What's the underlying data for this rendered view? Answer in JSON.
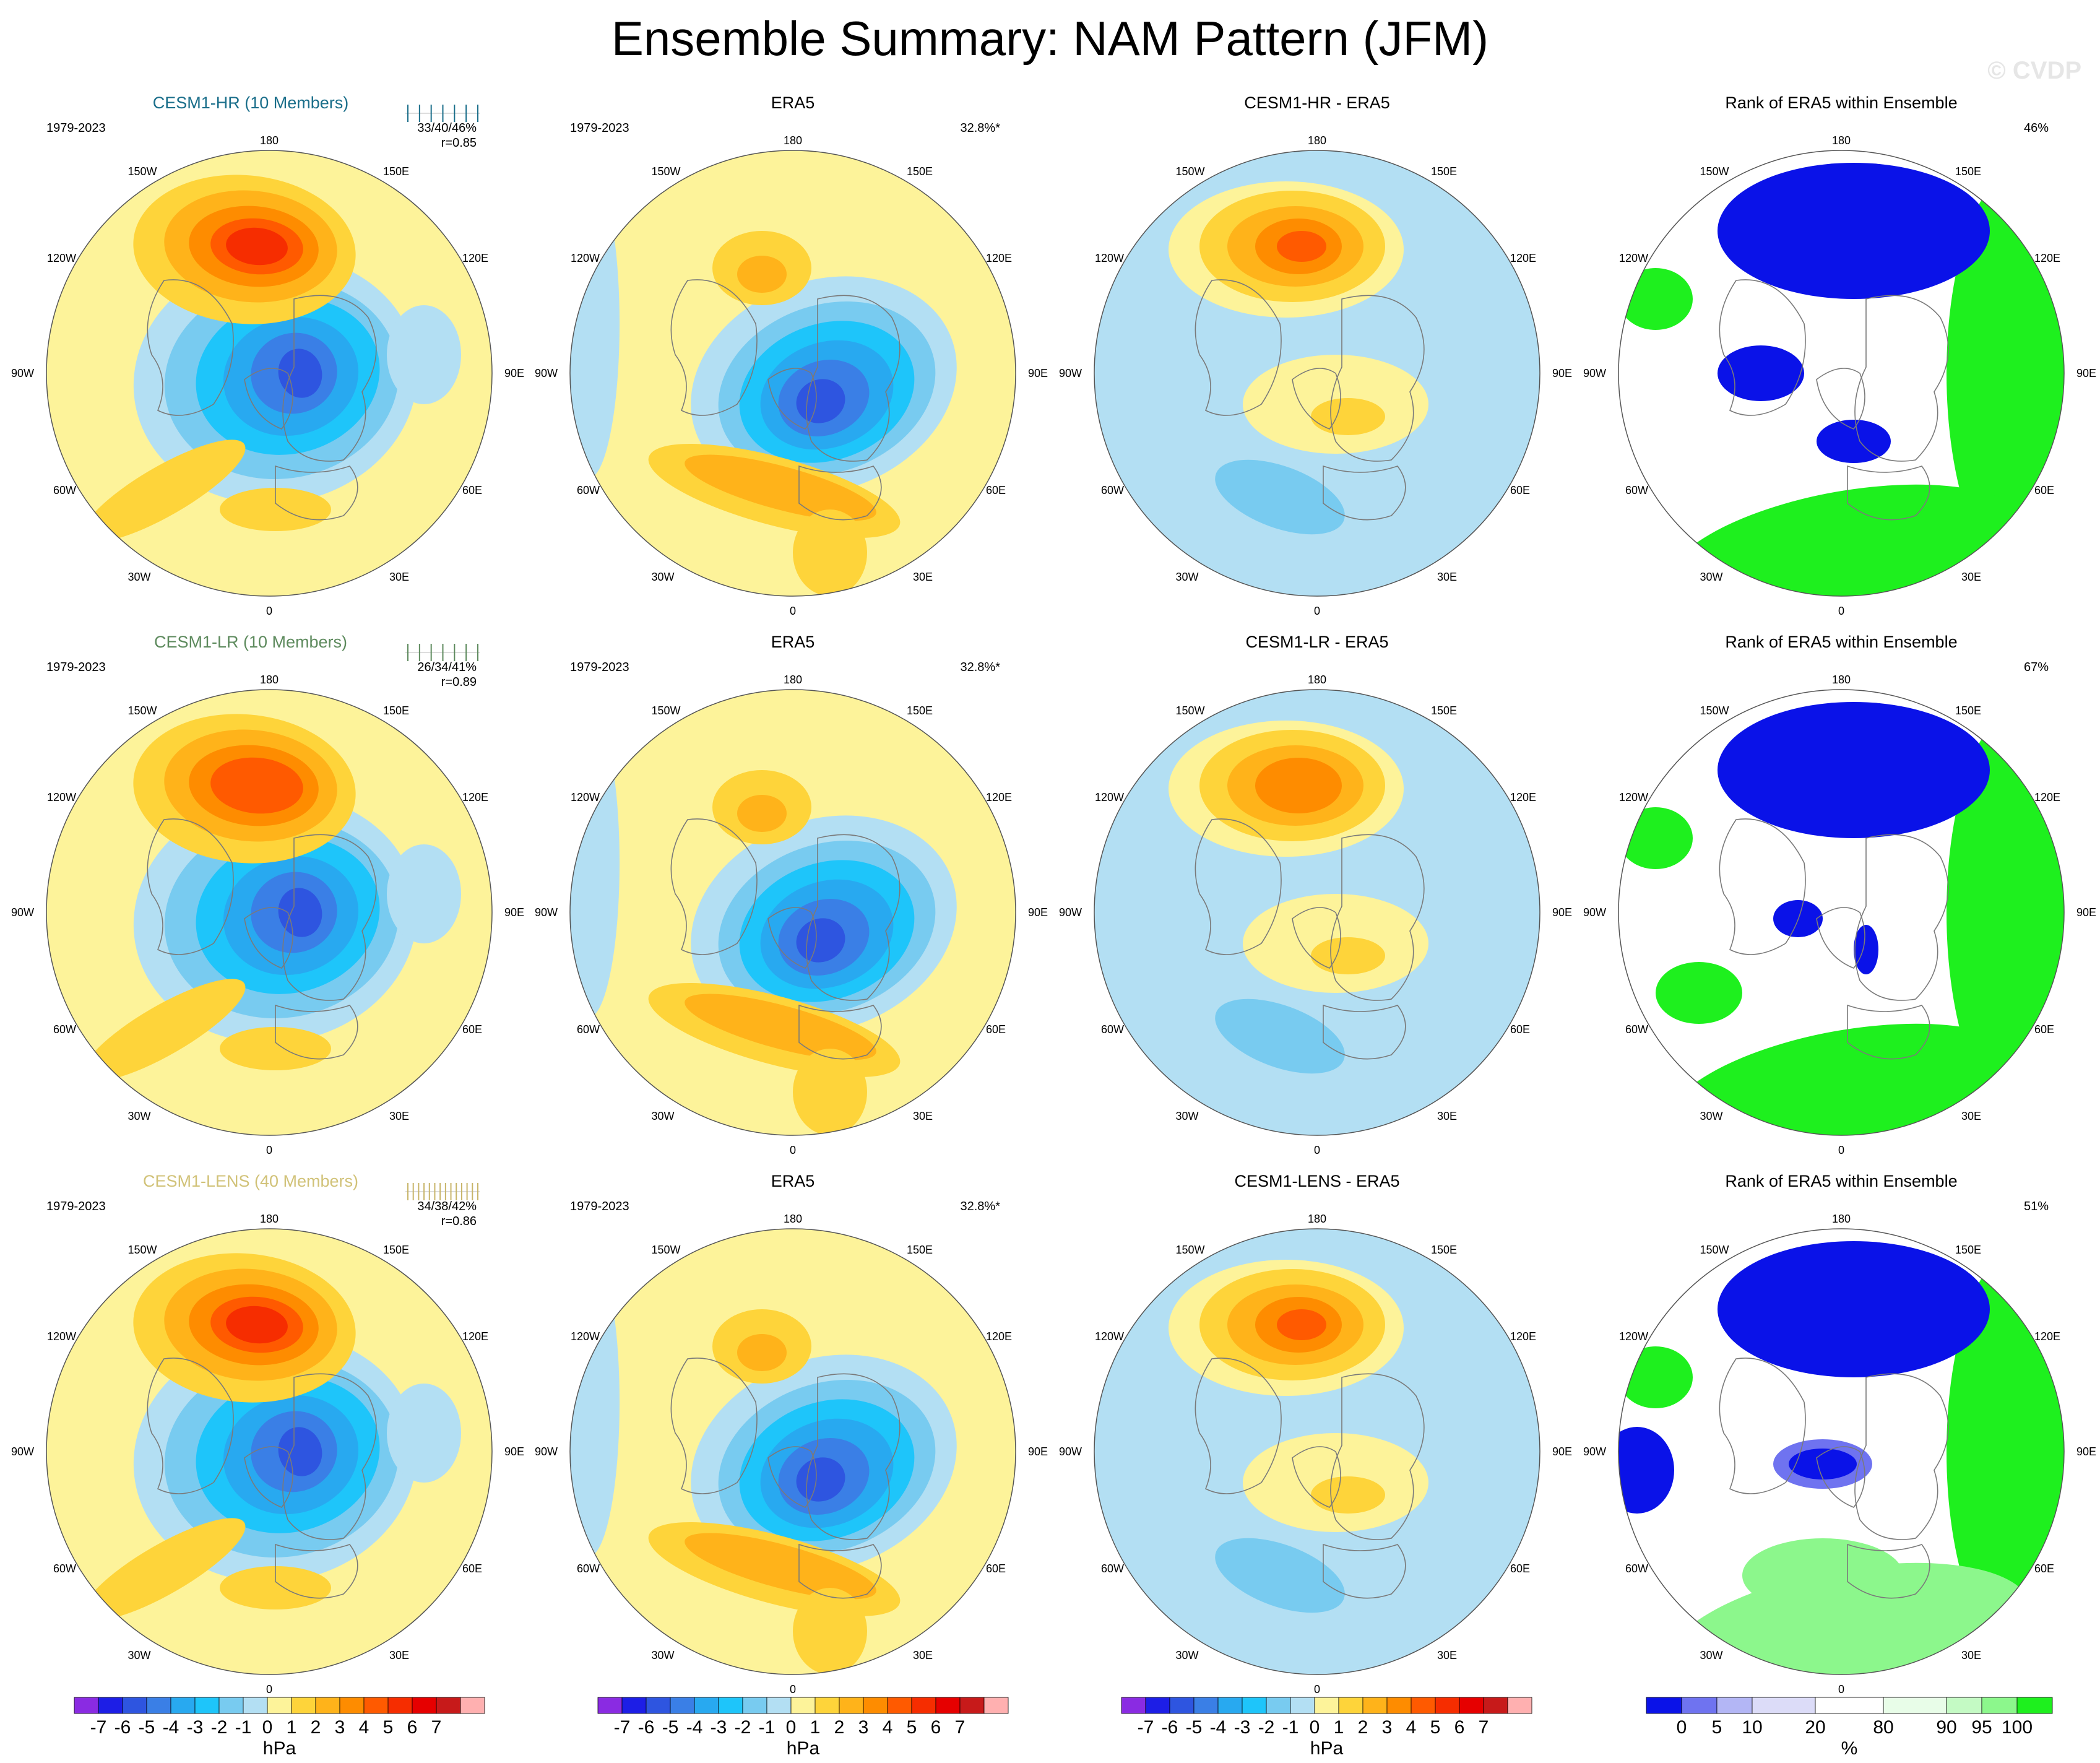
{
  "title": "Ensemble Summary: NAM Pattern (JFM)",
  "watermark": "© CVDP",
  "colors": {
    "ocean_light_blue": "#b3dff3",
    "land_yellow": "#fdf39a",
    "coast": "#7a7a7a",
    "model_title_hr": "#1a6e8a",
    "model_title_lr": "#5d8a5d",
    "model_title_lens": "#d1c278"
  },
  "hpa_colorbar": {
    "colors": [
      "#8a2be2",
      "#1d1ee6",
      "#2e55e0",
      "#3a7fe6",
      "#28a9f0",
      "#1ec5fa",
      "#78cbf0",
      "#b3dff3",
      "#fdf39a",
      "#fed43a",
      "#ffb31a",
      "#fe8c00",
      "#ff5a00",
      "#f62d00",
      "#e60000",
      "#c71a1a",
      "#ffb0b0"
    ],
    "labels": [
      "-7",
      "-6",
      "-5",
      "-4",
      "-3",
      "-2",
      "-1",
      "0",
      "1",
      "2",
      "3",
      "4",
      "5",
      "6",
      "7"
    ],
    "unit": "hPa"
  },
  "rank_colorbar": {
    "colors": [
      "#0a12e8",
      "#6f73f0",
      "#b3b6f5",
      "#dcdcf8",
      "#ffffff",
      "#e8fde8",
      "#c4fac4",
      "#8cf78c",
      "#1ef01e"
    ],
    "labels": [
      "0",
      "5",
      "10",
      "20",
      "80",
      "90",
      "95",
      "100"
    ],
    "unit": "%"
  },
  "map_labels": {
    "top": "180",
    "bottom": "0",
    "left_upper": "120W",
    "left_mid": "90W",
    "left_lower": "60W",
    "upper_left": "150W",
    "lower_left": "30W",
    "right_upper": "120E",
    "right_mid": "90E",
    "right_lower": "60E",
    "upper_right": "150E",
    "lower_right": "30E"
  },
  "rows": [
    {
      "model": {
        "title": "CESM1-HR (10 Members)",
        "color_key": "model_title_hr",
        "years": "1979-2023",
        "stats": "33/40/46%",
        "corr": "r=0.85",
        "tick_color": "#1a6e8a"
      },
      "era5": {
        "title": "ERA5",
        "years": "1979-2023",
        "pct": "32.8%*"
      },
      "diff": {
        "title": "CESM1-HR - ERA5"
      },
      "rank": {
        "title": "Rank of ERA5 within Ensemble",
        "pct": "46%"
      }
    },
    {
      "model": {
        "title": "CESM1-LR (10 Members)",
        "color_key": "model_title_lr",
        "years": "1979-2023",
        "stats": "26/34/41%",
        "corr": "r=0.89",
        "tick_color": "#5d8a5d"
      },
      "era5": {
        "title": "ERA5",
        "years": "1979-2023",
        "pct": "32.8%*"
      },
      "diff": {
        "title": "CESM1-LR - ERA5"
      },
      "rank": {
        "title": "Rank of ERA5 within Ensemble",
        "pct": "67%"
      }
    },
    {
      "model": {
        "title": "CESM1-LENS (40 Members)",
        "color_key": "model_title_lens",
        "years": "1979-2023",
        "stats": "34/38/42%",
        "corr": "r=0.86",
        "tick_color": "#c8b56a"
      },
      "era5": {
        "title": "ERA5",
        "years": "1979-2023",
        "pct": "32.8%*"
      },
      "diff": {
        "title": "CESM1-LENS - ERA5"
      },
      "rank": {
        "title": "Rank of ERA5 within Ensemble",
        "pct": "51%"
      }
    }
  ],
  "chart_data": [
    {
      "type": "heatmap",
      "title": "CESM1-HR (10 Members)",
      "variable": "NAM pattern",
      "units": "hPa",
      "clim": [
        -7,
        7
      ],
      "centers": [
        {
          "region": "Arctic",
          "value": -6
        },
        {
          "region": "North Pacific",
          "value": 5
        },
        {
          "region": "Europe/Mediterranean",
          "value": 1
        }
      ]
    },
    {
      "type": "heatmap",
      "title": "ERA5",
      "variable": "NAM pattern",
      "units": "hPa",
      "clim": [
        -7,
        7
      ],
      "centers": [
        {
          "region": "Arctic",
          "value": -6
        },
        {
          "region": "North Pacific",
          "value": 2
        },
        {
          "region": "North Atlantic",
          "value": 3
        }
      ]
    },
    {
      "type": "heatmap",
      "title": "CESM1-HR - ERA5",
      "units": "hPa",
      "clim": [
        -7,
        7
      ],
      "centers": [
        {
          "region": "North Pacific",
          "value": 4
        },
        {
          "region": "North Atlantic",
          "value": -2
        }
      ]
    },
    {
      "type": "heatmap",
      "title": "Rank of ERA5 within Ensemble",
      "units": "%",
      "clim": [
        0,
        100
      ]
    },
    {
      "type": "heatmap",
      "title": "CESM1-LR (10 Members)",
      "variable": "NAM pattern",
      "units": "hPa",
      "clim": [
        -7,
        7
      ],
      "centers": [
        {
          "region": "Arctic",
          "value": -5
        },
        {
          "region": "North Pacific",
          "value": 4
        },
        {
          "region": "North Atlantic",
          "value": 2
        }
      ]
    },
    {
      "type": "heatmap",
      "title": "CESM1-LR - ERA5",
      "units": "hPa",
      "clim": [
        -7,
        7
      ],
      "centers": [
        {
          "region": "North Pacific",
          "value": 2
        },
        {
          "region": "North Atlantic",
          "value": -1
        }
      ]
    },
    {
      "type": "heatmap",
      "title": "CESM1-LENS (40 Members)",
      "variable": "NAM pattern",
      "units": "hPa",
      "clim": [
        -7,
        7
      ],
      "centers": [
        {
          "region": "Arctic",
          "value": -5
        },
        {
          "region": "North Pacific",
          "value": 5
        },
        {
          "region": "North Atlantic",
          "value": 2
        }
      ]
    },
    {
      "type": "heatmap",
      "title": "CESM1-LENS - ERA5",
      "units": "hPa",
      "clim": [
        -7,
        7
      ],
      "centers": [
        {
          "region": "North Pacific",
          "value": 3
        },
        {
          "region": "North Atlantic",
          "value": -1
        }
      ]
    }
  ]
}
